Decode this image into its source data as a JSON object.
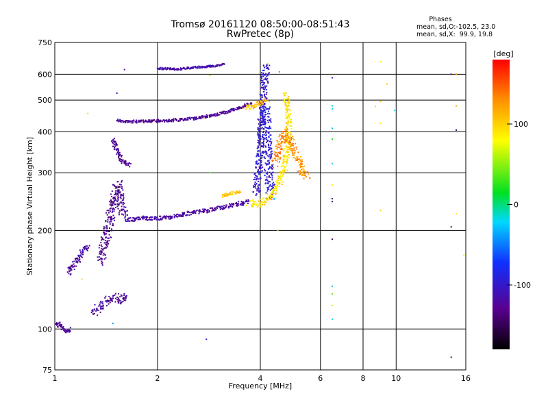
{
  "chart_data": {
    "type": "scatter",
    "title": "Tromsø 20161120 08:50:00-08:51:43",
    "subtitle": "RwPretec (8p)",
    "xlabel": "Frequency [MHz]",
    "ylabel": "Stationary phase Virtual Height [km]",
    "x_scale": "log",
    "y_scale": "log",
    "xlim": [
      1,
      16
    ],
    "ylim": [
      75,
      750
    ],
    "grid": true,
    "x_ticks": [
      {
        "value": 1,
        "label": "1"
      },
      {
        "value": 2,
        "label": "2"
      },
      {
        "value": 4,
        "label": "4"
      },
      {
        "value": 6,
        "label": "6"
      },
      {
        "value": 8,
        "label": "8"
      },
      {
        "value": 10,
        "label": "10"
      },
      {
        "value": 16,
        "label": "16"
      }
    ],
    "y_ticks": [
      {
        "value": 75,
        "label": "75"
      },
      {
        "value": 100,
        "label": "100"
      },
      {
        "value": 200,
        "label": "200"
      },
      {
        "value": 300,
        "label": "300"
      },
      {
        "value": 400,
        "label": "400"
      },
      {
        "value": 500,
        "label": "500"
      },
      {
        "value": 600,
        "label": "600"
      },
      {
        "value": 750,
        "label": "750"
      }
    ],
    "stats": {
      "heading": "Phases",
      "line_o": "mean, sd,O:-102.5, 23.0",
      "line_x": "mean, sd,X:  99.9, 19.8"
    },
    "colorbar": {
      "label": "[deg]",
      "range": [
        -180,
        180
      ],
      "ticks": [
        {
          "value": 100,
          "label": "100"
        },
        {
          "value": 0,
          "label": "0"
        },
        {
          "value": -100,
          "label": "-100"
        }
      ]
    },
    "traces": [
      {
        "phase": -125,
        "spread": 0.012,
        "points": [
          [
            1.0,
            102
          ],
          [
            1.03,
            104
          ],
          [
            1.06,
            100
          ],
          [
            1.09,
            98
          ],
          [
            1.11,
            100
          ]
        ]
      },
      {
        "phase": -120,
        "spread": 0.018,
        "points": [
          [
            1.1,
            148
          ],
          [
            1.14,
            158
          ],
          [
            1.2,
            170
          ],
          [
            1.25,
            180
          ]
        ]
      },
      {
        "phase": -125,
        "spread": 0.025,
        "points": [
          [
            1.3,
            112
          ],
          [
            1.37,
            118
          ],
          [
            1.45,
            123
          ],
          [
            1.52,
            125
          ],
          [
            1.58,
            122
          ],
          [
            1.62,
            128
          ]
        ]
      },
      {
        "phase": -130,
        "spread": 0.03,
        "points": [
          [
            1.37,
            160
          ],
          [
            1.41,
            190
          ],
          [
            1.46,
            225
          ],
          [
            1.5,
            250
          ],
          [
            1.53,
            275
          ],
          [
            1.56,
            240
          ],
          [
            1.62,
            220
          ]
        ]
      },
      {
        "phase": -128,
        "spread": 0.012,
        "points": [
          [
            1.48,
            380
          ],
          [
            1.53,
            345
          ],
          [
            1.58,
            325
          ],
          [
            1.66,
            315
          ]
        ]
      },
      {
        "phase": -120,
        "spread": 0.012,
        "points": [
          [
            1.62,
            215
          ],
          [
            1.8,
            218
          ],
          [
            2.0,
            218
          ],
          [
            2.2,
            220
          ],
          [
            2.5,
            226
          ],
          [
            2.8,
            230
          ],
          [
            3.1,
            235
          ],
          [
            3.4,
            240
          ],
          [
            3.7,
            245
          ]
        ]
      },
      {
        "phase": -125,
        "spread": 0.008,
        "points": [
          [
            1.52,
            435
          ],
          [
            1.6,
            430
          ],
          [
            1.75,
            430
          ],
          [
            2.0,
            432
          ],
          [
            2.3,
            435
          ],
          [
            2.6,
            440
          ],
          [
            2.9,
            450
          ],
          [
            3.2,
            460
          ],
          [
            3.5,
            475
          ],
          [
            3.8,
            492
          ]
        ]
      },
      {
        "phase": -115,
        "spread": 0.006,
        "points": [
          [
            2.0,
            625
          ],
          [
            2.3,
            622
          ],
          [
            2.6,
            630
          ],
          [
            2.9,
            635
          ],
          [
            3.15,
            645
          ]
        ]
      },
      {
        "phase": -100,
        "spread": 0.025,
        "points": [
          [
            3.9,
            260
          ],
          [
            3.95,
            300
          ],
          [
            4.0,
            360
          ],
          [
            4.03,
            420
          ],
          [
            4.06,
            480
          ],
          [
            4.1,
            540
          ],
          [
            4.13,
            600
          ],
          [
            4.16,
            640
          ]
        ]
      },
      {
        "phase": -95,
        "spread": 0.03,
        "points": [
          [
            4.15,
            480
          ],
          [
            4.18,
            400
          ],
          [
            4.22,
            330
          ],
          [
            4.26,
            280
          ],
          [
            4.3,
            255
          ]
        ]
      },
      {
        "phase": 95,
        "spread": 0.02,
        "points": [
          [
            3.7,
            242
          ],
          [
            3.9,
            240
          ],
          [
            4.1,
            245
          ],
          [
            4.3,
            255
          ],
          [
            4.5,
            275
          ],
          [
            4.7,
            310
          ],
          [
            4.8,
            360
          ],
          [
            4.85,
            420
          ],
          [
            4.82,
            480
          ],
          [
            4.75,
            520
          ]
        ]
      },
      {
        "phase": 130,
        "spread": 0.025,
        "points": [
          [
            4.4,
            320
          ],
          [
            4.55,
            360
          ],
          [
            4.7,
            400
          ],
          [
            4.9,
            380
          ],
          [
            5.1,
            340
          ],
          [
            5.3,
            300
          ],
          [
            5.5,
            290
          ]
        ]
      },
      {
        "phase": 105,
        "spread": 0.01,
        "points": [
          [
            3.1,
            255
          ],
          [
            3.3,
            260
          ],
          [
            3.5,
            262
          ]
        ]
      },
      {
        "phase": 110,
        "spread": 0.015,
        "points": [
          [
            3.6,
            475
          ],
          [
            3.8,
            480
          ],
          [
            4.0,
            490
          ],
          [
            4.2,
            500
          ]
        ]
      }
    ],
    "scatter": [
      {
        "x": 6.5,
        "y": 585,
        "phase": -100
      },
      {
        "x": 6.5,
        "y": 480,
        "phase": -10
      },
      {
        "x": 6.5,
        "y": 470,
        "phase": -20
      },
      {
        "x": 6.5,
        "y": 410,
        "phase": -30
      },
      {
        "x": 6.5,
        "y": 380,
        "phase": 20
      },
      {
        "x": 6.5,
        "y": 320,
        "phase": -20
      },
      {
        "x": 6.5,
        "y": 275,
        "phase": 90
      },
      {
        "x": 6.5,
        "y": 250,
        "phase": -150
      },
      {
        "x": 6.5,
        "y": 245,
        "phase": -150
      },
      {
        "x": 6.5,
        "y": 188,
        "phase": -150
      },
      {
        "x": 6.5,
        "y": 135,
        "phase": -30
      },
      {
        "x": 6.5,
        "y": 128,
        "phase": 40
      },
      {
        "x": 6.5,
        "y": 118,
        "phase": 60
      },
      {
        "x": 6.5,
        "y": 107,
        "phase": -20
      },
      {
        "x": 9.0,
        "y": 655,
        "phase": 80
      },
      {
        "x": 9.0,
        "y": 495,
        "phase": 100
      },
      {
        "x": 9.0,
        "y": 425,
        "phase": 90
      },
      {
        "x": 9.0,
        "y": 230,
        "phase": 100
      },
      {
        "x": 8.7,
        "y": 478,
        "phase": 100
      },
      {
        "x": 9.4,
        "y": 560,
        "phase": 100
      },
      {
        "x": 9.9,
        "y": 465,
        "phase": -20
      },
      {
        "x": 14.5,
        "y": 600,
        "phase": -120
      },
      {
        "x": 15.0,
        "y": 600,
        "phase": 130
      },
      {
        "x": 15.0,
        "y": 480,
        "phase": 120
      },
      {
        "x": 15.0,
        "y": 405,
        "phase": -150
      },
      {
        "x": 15.0,
        "y": 225,
        "phase": 90
      },
      {
        "x": 14.5,
        "y": 205,
        "phase": -150
      },
      {
        "x": 15.8,
        "y": 168,
        "phase": 90
      },
      {
        "x": 14.5,
        "y": 82,
        "phase": -150
      },
      {
        "x": 2.78,
        "y": 93,
        "phase": -100
      },
      {
        "x": 1.25,
        "y": 455,
        "phase": 60
      },
      {
        "x": 1.52,
        "y": 525,
        "phase": -120
      },
      {
        "x": 1.6,
        "y": 620,
        "phase": -120
      },
      {
        "x": 1.48,
        "y": 104,
        "phase": -40
      },
      {
        "x": 1.2,
        "y": 142,
        "phase": 100
      },
      {
        "x": 4.55,
        "y": 610,
        "phase": 140
      },
      {
        "x": 4.5,
        "y": 200,
        "phase": 100
      },
      {
        "x": 4.4,
        "y": 250,
        "phase": -20
      },
      {
        "x": 4.2,
        "y": 645,
        "phase": 120
      },
      {
        "x": 2.85,
        "y": 300,
        "phase": 40
      },
      {
        "x": 2.85,
        "y": 595,
        "phase": 60
      }
    ]
  }
}
